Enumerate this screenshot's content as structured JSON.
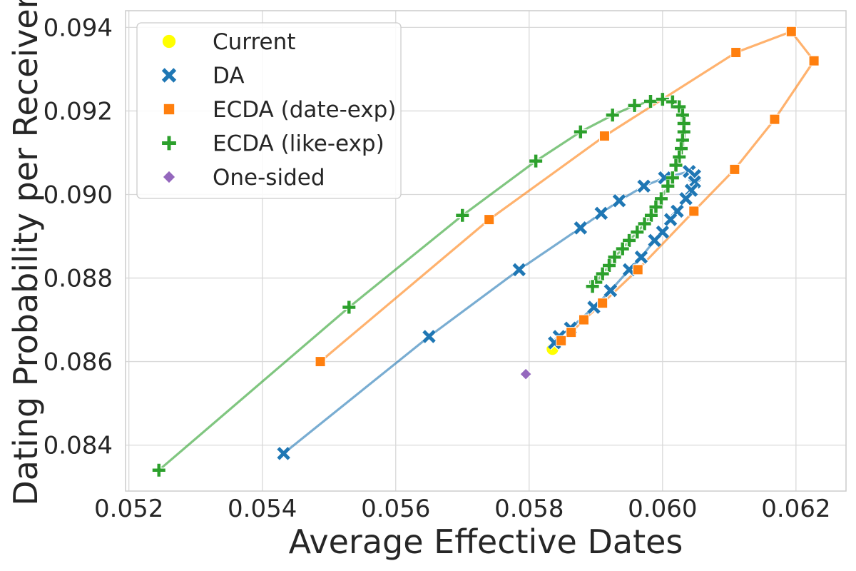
{
  "chart_data": {
    "type": "line",
    "xlabel": "Average Effective Dates",
    "ylabel": "Dating Probability per Receiver",
    "xlim": [
      0.05195,
      0.06275
    ],
    "ylim": [
      0.0829,
      0.0944
    ],
    "xticks": [
      0.052,
      0.054,
      0.056,
      0.058,
      0.06,
      0.062
    ],
    "yticks": [
      0.084,
      0.086,
      0.088,
      0.09,
      0.092,
      0.094
    ],
    "xtick_labels": [
      "0.052",
      "0.054",
      "0.056",
      "0.058",
      "0.060",
      "0.062"
    ],
    "ytick_labels": [
      "0.084",
      "0.086",
      "0.088",
      "0.090",
      "0.092",
      "0.094"
    ],
    "grid": true,
    "legend_position": "top-left",
    "series": [
      {
        "name": "Current",
        "marker": "circle",
        "color": "#FFFF00",
        "line": false,
        "points": [
          [
            0.05835,
            0.0863
          ]
        ]
      },
      {
        "name": "DA",
        "marker": "x",
        "color": "#1f77b4",
        "line": true,
        "points": [
          [
            0.05432,
            0.0838
          ],
          [
            0.0565,
            0.0866
          ],
          [
            0.05785,
            0.0882
          ],
          [
            0.05877,
            0.0892
          ],
          [
            0.05908,
            0.08955
          ],
          [
            0.05935,
            0.08985
          ],
          [
            0.05972,
            0.0902
          ],
          [
            0.06003,
            0.0904
          ],
          [
            0.0604,
            0.09055
          ],
          [
            0.06048,
            0.09045
          ],
          [
            0.06048,
            0.0903
          ],
          [
            0.06043,
            0.0901
          ],
          [
            0.06035,
            0.0899
          ],
          [
            0.06022,
            0.0896
          ],
          [
            0.06012,
            0.0894
          ],
          [
            0.06,
            0.0891
          ],
          [
            0.05988,
            0.0889
          ],
          [
            0.05968,
            0.0885
          ],
          [
            0.0595,
            0.0882
          ],
          [
            0.05922,
            0.0877
          ],
          [
            0.05897,
            0.0873
          ],
          [
            0.05862,
            0.0868
          ],
          [
            0.05845,
            0.0866
          ],
          [
            0.05838,
            0.08645
          ]
        ]
      },
      {
        "name": "ECDA (date-exp)",
        "marker": "square",
        "color": "#ff7f0e",
        "line": true,
        "points": [
          [
            0.05487,
            0.086
          ],
          [
            0.0574,
            0.0894
          ],
          [
            0.05913,
            0.0914
          ],
          [
            0.0611,
            0.0934
          ],
          [
            0.06193,
            0.0939
          ],
          [
            0.06227,
            0.0932
          ],
          [
            0.06168,
            0.0918
          ],
          [
            0.06108,
            0.0906
          ],
          [
            0.06047,
            0.0896
          ],
          [
            0.05963,
            0.0882
          ],
          [
            0.0591,
            0.0874
          ],
          [
            0.05882,
            0.087
          ],
          [
            0.05863,
            0.0867
          ],
          [
            0.05848,
            0.0865
          ]
        ]
      },
      {
        "name": "ECDA (like-exp)",
        "marker": "plus",
        "color": "#2ca02c",
        "line": true,
        "points": [
          [
            0.05245,
            0.0834
          ],
          [
            0.0553,
            0.0873
          ],
          [
            0.057,
            0.0895
          ],
          [
            0.0581,
            0.0908
          ],
          [
            0.05877,
            0.0915
          ],
          [
            0.05925,
            0.0919
          ],
          [
            0.05958,
            0.09213
          ],
          [
            0.05982,
            0.09223
          ],
          [
            0.06,
            0.09228
          ],
          [
            0.06015,
            0.09222
          ],
          [
            0.06025,
            0.0921
          ],
          [
            0.0603,
            0.0919
          ],
          [
            0.06032,
            0.0917
          ],
          [
            0.06032,
            0.0915
          ],
          [
            0.0603,
            0.0913
          ],
          [
            0.06028,
            0.0911
          ],
          [
            0.06025,
            0.0909
          ],
          [
            0.0602,
            0.0907
          ],
          [
            0.06015,
            0.0904
          ],
          [
            0.06008,
            0.0902
          ],
          [
            0.05998,
            0.0899
          ],
          [
            0.0599,
            0.0897
          ],
          [
            0.05983,
            0.0895
          ],
          [
            0.05973,
            0.0893
          ],
          [
            0.05962,
            0.0891
          ],
          [
            0.0595,
            0.0889
          ],
          [
            0.0594,
            0.0887
          ],
          [
            0.05928,
            0.0885
          ],
          [
            0.0592,
            0.0883
          ],
          [
            0.0591,
            0.0881
          ],
          [
            0.059,
            0.0879
          ],
          [
            0.05895,
            0.0878
          ]
        ]
      },
      {
        "name": "One-sided",
        "marker": "diamond",
        "color": "#9467bd",
        "line": false,
        "points": [
          [
            0.05795,
            0.0857
          ]
        ]
      }
    ]
  }
}
